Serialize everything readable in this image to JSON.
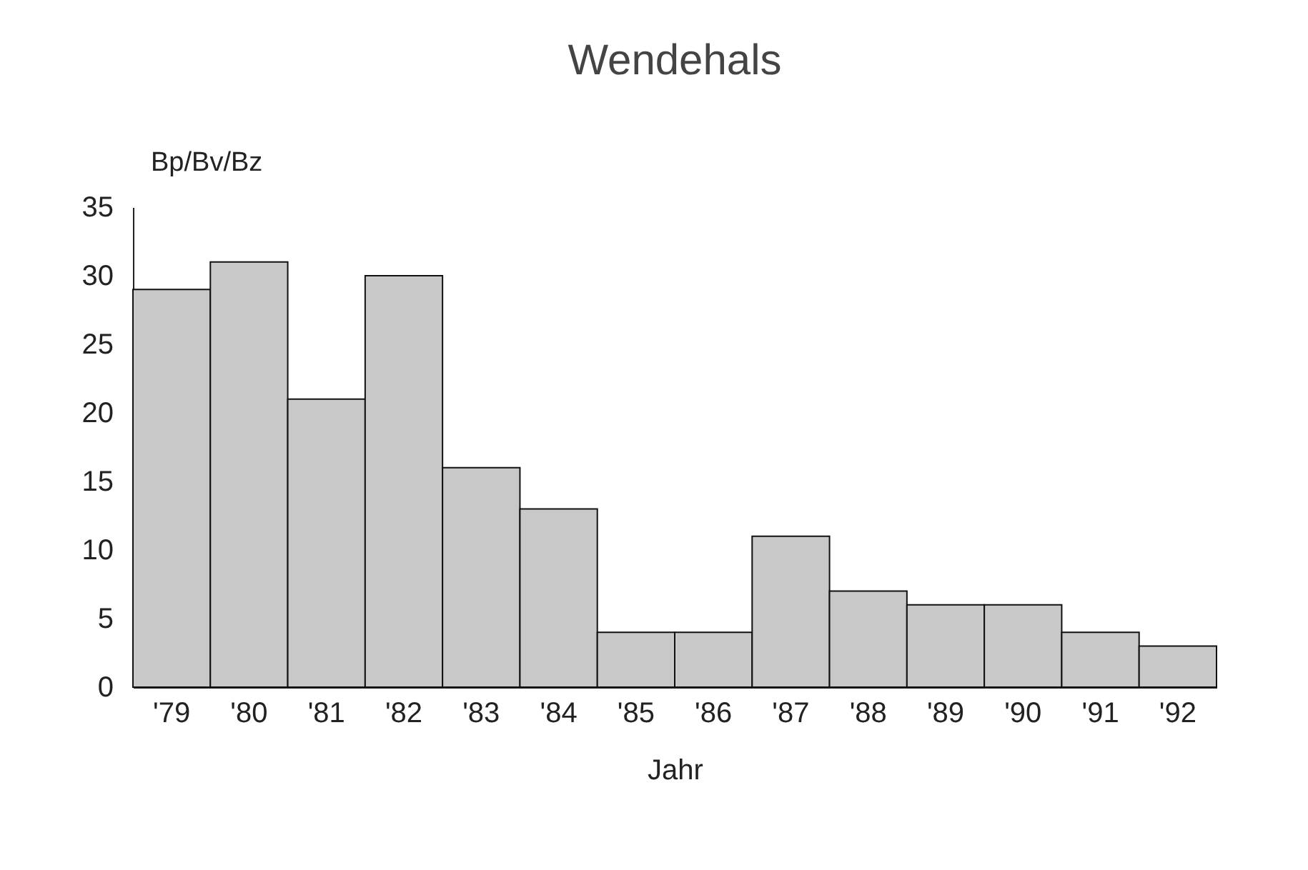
{
  "chart_data": {
    "type": "bar",
    "title": "Wendehals",
    "xlabel": "Jahr",
    "ylabel": "Bp/Bv/Bz",
    "categories": [
      "'79",
      "'80",
      "'81",
      "'82",
      "'83",
      "'84",
      "'85",
      "'86",
      "'87",
      "'88",
      "'89",
      "'90",
      "'91",
      "'92"
    ],
    "values": [
      29,
      31,
      21,
      30,
      16,
      13,
      4,
      4,
      11,
      7,
      6,
      6,
      4,
      3
    ],
    "color": "#c8c8c8",
    "ylim": [
      0,
      35
    ],
    "yticks": [
      0,
      5,
      10,
      15,
      20,
      25,
      30,
      35
    ],
    "grid": false
  }
}
